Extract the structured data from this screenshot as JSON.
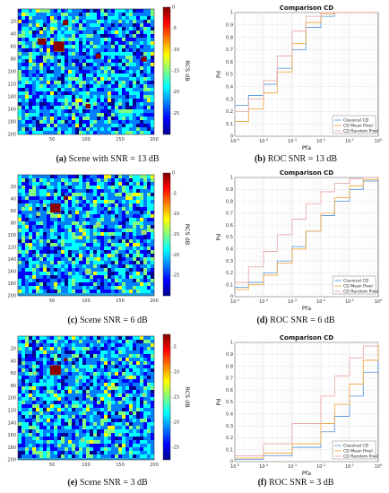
{
  "colors": {
    "jet": [
      "#00008f",
      "#0000ff",
      "#0080ff",
      "#00ffff",
      "#80ff80",
      "#ffff00",
      "#ff8000",
      "#ff0000",
      "#800000"
    ],
    "classical": "#4a90d9",
    "mean_pixel": "#f0a030",
    "random_pixel": "#e6a0a0",
    "target": "#8b0000"
  },
  "panels": [
    {
      "scene": {
        "caption_letter": "(a)",
        "caption_text": "Scene with SNR = 13 dB",
        "ylabel": "RCS dB",
        "xticks": [
          "50",
          "100",
          "150",
          "200"
        ],
        "yticks": [
          "20",
          "40",
          "60",
          "80",
          "100",
          "120",
          "140",
          "160",
          "180",
          "200"
        ],
        "cbar_ticks": [
          "0",
          "-5",
          "-10",
          "-15",
          "-20",
          "-25"
        ],
        "noise_level": 0.2,
        "targets_visible": true
      },
      "roc": {
        "caption_letter": "(b)",
        "caption_text": "ROC SNR = 13 dB",
        "chart_data": {
          "type": "line",
          "title": "Comparison CD",
          "xlabel": "Pfa",
          "ylabel": "Pd",
          "xscale": "log",
          "xlim": [
            1e-05,
            1
          ],
          "ylim": [
            0,
            1
          ],
          "xticks": [
            "10^-5",
            "10^-4",
            "10^-3",
            "10^-2",
            "10^-1",
            "10^0"
          ],
          "yticks": [
            "0",
            "0.1",
            "0.2",
            "0.3",
            "0.4",
            "0.5",
            "0.6",
            "0.7",
            "0.8",
            "0.9",
            "1"
          ],
          "legend_position": "bottom-right",
          "series": [
            {
              "name": "Classical CD",
              "x": [
                1e-05,
                3e-05,
                0.0001,
                0.0003,
                0.001,
                0.003,
                0.01,
                0.03,
                0.1,
                1
              ],
              "y": [
                0.25,
                0.33,
                0.42,
                0.55,
                0.7,
                0.88,
                0.97,
                1.0,
                1.0,
                1.0
              ]
            },
            {
              "name": "CD Mean Pixel",
              "x": [
                1e-05,
                3e-05,
                0.0001,
                0.0003,
                0.001,
                0.003,
                0.01,
                0.03,
                0.1,
                1
              ],
              "y": [
                0.12,
                0.22,
                0.35,
                0.52,
                0.75,
                0.92,
                0.99,
                1.0,
                1.0,
                1.0
              ]
            },
            {
              "name": "CD Random Pixel",
              "x": [
                1e-05,
                3e-05,
                0.0001,
                0.0003,
                0.001,
                0.003,
                0.01,
                0.03,
                0.1,
                1
              ],
              "y": [
                0.2,
                0.3,
                0.45,
                0.65,
                0.85,
                0.97,
                1.0,
                1.0,
                1.0,
                1.0
              ]
            }
          ]
        }
      }
    },
    {
      "scene": {
        "caption_letter": "(c)",
        "caption_text": "Scene SNR = 6 dB",
        "ylabel": "RCS dB",
        "xticks": [
          "50",
          "100",
          "150",
          "200"
        ],
        "yticks": [
          "20",
          "40",
          "60",
          "80",
          "100",
          "120",
          "140",
          "160",
          "180",
          "200"
        ],
        "cbar_ticks": [
          "0",
          "-5",
          "-10",
          "-15",
          "-20",
          "-25"
        ],
        "noise_level": 0.35,
        "targets_visible": false
      },
      "roc": {
        "caption_letter": "(d)",
        "caption_text": "ROC SNR = 6 dB",
        "chart_data": {
          "type": "line",
          "title": "Comparison CD",
          "xlabel": "Pfa",
          "ylabel": "Pd",
          "xscale": "log",
          "xlim": [
            1e-05,
            1
          ],
          "ylim": [
            0,
            1
          ],
          "xticks": [
            "10^-5",
            "10^-4",
            "10^-3",
            "10^-2",
            "10^-1",
            "10^0"
          ],
          "yticks": [
            "0",
            "0.1",
            "0.2",
            "0.3",
            "0.4",
            "0.5",
            "0.6",
            "0.7",
            "0.8",
            "0.9",
            "1"
          ],
          "legend_position": "bottom-right",
          "series": [
            {
              "name": "Classical CD",
              "x": [
                1e-05,
                3e-05,
                0.0001,
                0.0003,
                0.001,
                0.003,
                0.01,
                0.03,
                0.1,
                0.3,
                1
              ],
              "y": [
                0.08,
                0.12,
                0.2,
                0.3,
                0.42,
                0.55,
                0.68,
                0.8,
                0.9,
                0.97,
                1.0
              ]
            },
            {
              "name": "CD Mean Pixel",
              "x": [
                1e-05,
                3e-05,
                0.0001,
                0.0003,
                0.001,
                0.003,
                0.01,
                0.03,
                0.1,
                0.3,
                1
              ],
              "y": [
                0.06,
                0.1,
                0.18,
                0.28,
                0.4,
                0.55,
                0.7,
                0.83,
                0.93,
                0.98,
                1.0
              ]
            },
            {
              "name": "CD Random Pixel",
              "x": [
                1e-05,
                3e-05,
                0.0001,
                0.0003,
                0.001,
                0.003,
                0.01,
                0.03,
                0.1,
                0.3,
                1
              ],
              "y": [
                0.12,
                0.25,
                0.38,
                0.52,
                0.65,
                0.78,
                0.88,
                0.95,
                0.99,
                1.0,
                1.0
              ]
            }
          ]
        }
      }
    },
    {
      "scene": {
        "caption_letter": "(e)",
        "caption_text": "Scene SNR = 3 dB",
        "ylabel": "RCS dB",
        "xticks": [
          "50",
          "100",
          "150",
          "200"
        ],
        "yticks": [
          "20",
          "40",
          "60",
          "80",
          "100",
          "120",
          "140",
          "160",
          "180",
          "200"
        ],
        "cbar_ticks": [
          "-5",
          "-10",
          "-15",
          "-20",
          "-25"
        ],
        "noise_level": 0.45,
        "targets_visible": false
      },
      "roc": {
        "caption_letter": "(f)",
        "caption_text": "ROC SNR = 3 dB",
        "chart_data": {
          "type": "line",
          "title": "Comparison CD",
          "xlabel": "Pfa",
          "ylabel": "Pd",
          "xscale": "log",
          "xlim": [
            1e-05,
            1
          ],
          "ylim": [
            0,
            1
          ],
          "xticks": [
            "10^-5",
            "10^-4",
            "10^-3",
            "10^-2",
            "10^-1",
            "10^0"
          ],
          "yticks": [
            "0",
            "0.1",
            "0.2",
            "0.3",
            "0.4",
            "0.5",
            "0.6",
            "0.7",
            "0.8",
            "0.9",
            "1"
          ],
          "legend_position": "bottom-right",
          "series": [
            {
              "name": "Classical CD",
              "x": [
                1e-05,
                0.0001,
                0.001,
                0.01,
                0.03,
                0.1,
                0.3,
                1
              ],
              "y": [
                0.02,
                0.05,
                0.12,
                0.25,
                0.38,
                0.55,
                0.75,
                1.0
              ]
            },
            {
              "name": "CD Mean Pixel",
              "x": [
                1e-05,
                0.0001,
                0.001,
                0.01,
                0.03,
                0.1,
                0.3,
                1
              ],
              "y": [
                0.03,
                0.07,
                0.15,
                0.32,
                0.48,
                0.65,
                0.85,
                1.0
              ]
            },
            {
              "name": "CD Random Pixel",
              "x": [
                1e-05,
                0.0001,
                0.001,
                0.01,
                0.03,
                0.1,
                0.3,
                1
              ],
              "y": [
                0.05,
                0.15,
                0.32,
                0.55,
                0.72,
                0.87,
                0.97,
                1.0
              ]
            }
          ]
        }
      }
    }
  ]
}
